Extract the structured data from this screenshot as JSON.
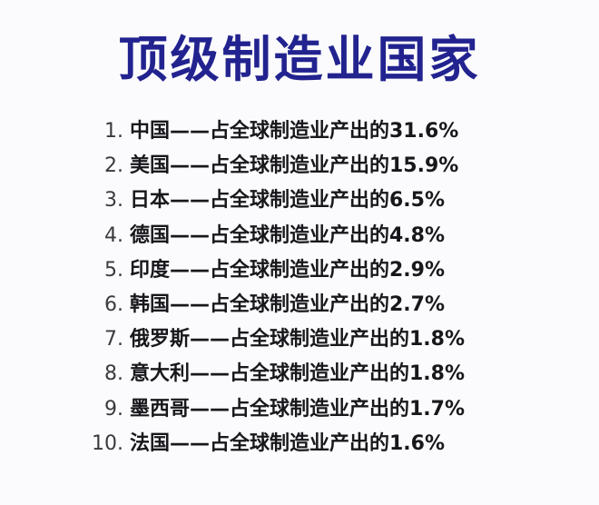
{
  "title": "顶级制造业国家",
  "items": [
    {
      "number": "1.",
      "text": "中国——占全球制造业产出的31.6%"
    },
    {
      "number": "2.",
      "text": "美国——占全球制造业产出的15.9%"
    },
    {
      "number": "3.",
      "text": "日本——占全球制造业产出的6.5%"
    },
    {
      "number": "4.",
      "text": "德国——占全球制造业产出的4.8%"
    },
    {
      "number": "5.",
      "text": "印度——占全球制造业产出的2.9%"
    },
    {
      "number": "6.",
      "text": "韩国——占全球制造业产出的2.7%"
    },
    {
      "number": "7.",
      "text": "俄罗斯——占全球制造业产出的1.8%"
    },
    {
      "number": "8.",
      "text": "意大利——占全球制造业产出的1.8%"
    },
    {
      "number": "9.",
      "text": "墨西哥——占全球制造业产出的1.7%"
    },
    {
      "number": "10.",
      "text": "法国——占全球制造业产出的1.6%"
    }
  ]
}
